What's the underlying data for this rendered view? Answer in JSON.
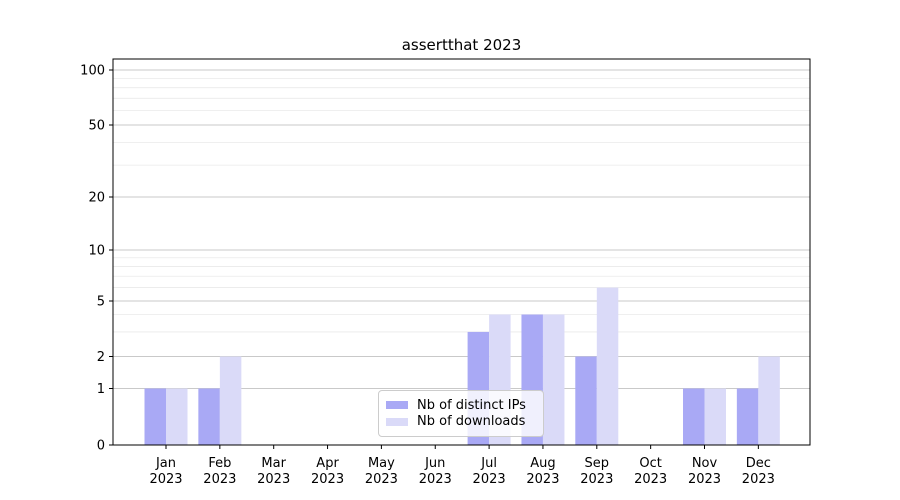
{
  "chart_data": {
    "type": "bar",
    "title": "assertthat 2023",
    "categories": [
      "Jan",
      "Feb",
      "Mar",
      "Apr",
      "May",
      "Jun",
      "Jul",
      "Aug",
      "Sep",
      "Oct",
      "Nov",
      "Dec"
    ],
    "category_year": "2023",
    "series": [
      {
        "name": "Nb of distinct IPs",
        "color": "#a9a9f5",
        "values": [
          1,
          1,
          0,
          0,
          0,
          0,
          3,
          4,
          2,
          0,
          1,
          1
        ]
      },
      {
        "name": "Nb of downloads",
        "color": "#dadaf8",
        "values": [
          1,
          2,
          0,
          0,
          0,
          0,
          4,
          4,
          6,
          0,
          1,
          2
        ]
      }
    ],
    "xlabel": "",
    "ylabel": "",
    "yscale": "symlog",
    "ylim": [
      0,
      115
    ],
    "yticks": [
      0,
      1,
      2,
      5,
      10,
      20,
      50,
      100
    ],
    "yticks_minor": [
      3,
      4,
      6,
      7,
      8,
      9,
      30,
      40,
      60,
      70,
      80,
      90
    ],
    "grid": true,
    "legend_position": "lower center",
    "colors": {
      "grid_major": "#c9c9c9",
      "grid_minor": "#eaeaea",
      "spine": "#000000",
      "text": "#000000",
      "background": "#ffffff"
    }
  }
}
